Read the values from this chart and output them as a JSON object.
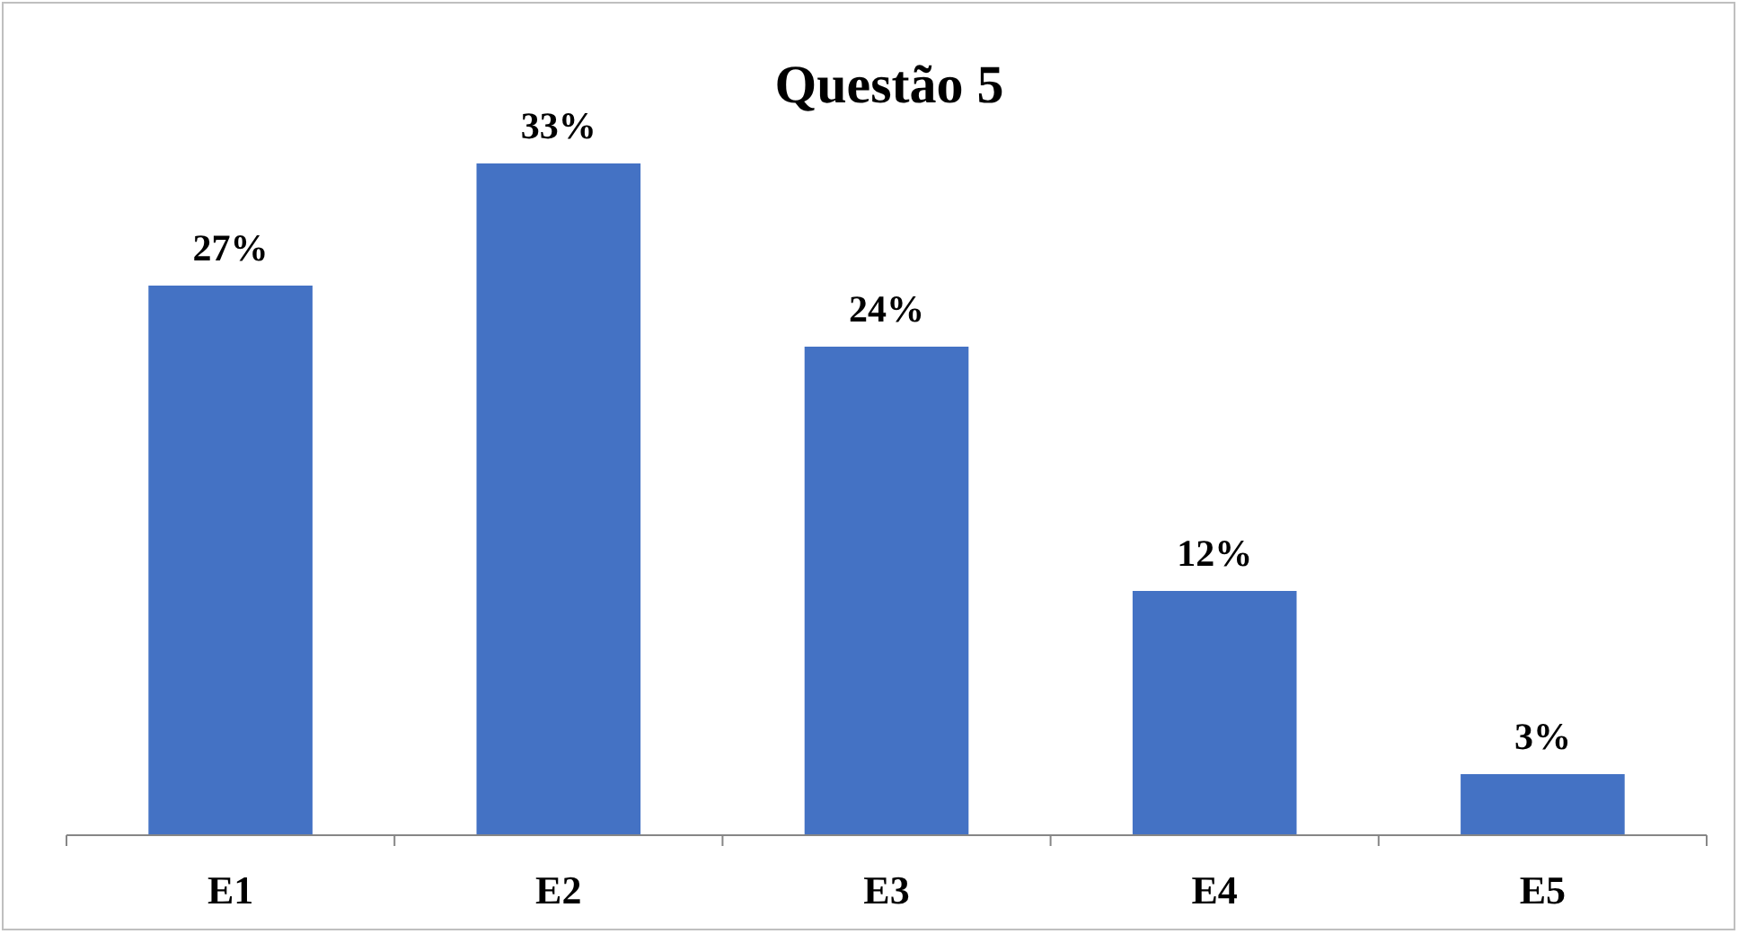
{
  "chart_data": {
    "type": "bar",
    "title": "Questão 5",
    "categories": [
      "E1",
      "E2",
      "E3",
      "E4",
      "E5"
    ],
    "values": [
      27,
      33,
      24,
      12,
      3
    ],
    "value_labels": [
      "27%",
      "33%",
      "24%",
      "12%",
      "3%"
    ],
    "color": "#4472c4"
  }
}
